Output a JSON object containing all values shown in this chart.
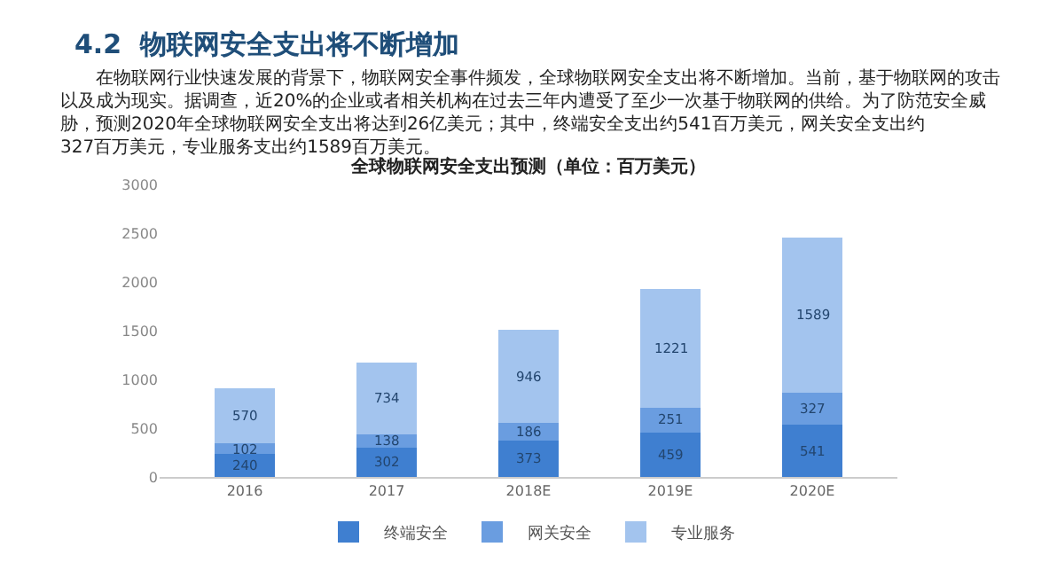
{
  "chart_data": {
    "type": "bar",
    "title": "全球物联网安全支出预测（单位：百万美元）",
    "annotations": [
      "4.2  物联网安全支出将不断增加",
      "在物联网行业快速发展的背景下，物联网安全事件频发，全球物联网安全支出将不断增加。当前，基于物联网的攻击以及成为现实。据调查，近20%的企业或者相关机构在过去三年内遭受了至少一次基于物联网的供给。为了防范安全威胁，预测2020年全球物联网安全支出将达到26亿美元；其中，终端安全支出约541百万美元，网关安全支出约327百万美元，专业服务支出约1589百万美元。"
    ],
    "categories": [
      "2016",
      "2017",
      "2018E",
      "2019E",
      "2020E"
    ],
    "stacked": true,
    "data_labels": true,
    "legend": "bottom",
    "ylim": [
      0,
      3000
    ],
    "yticks": [
      0,
      500,
      1000,
      1500,
      2000,
      2500,
      3000
    ],
    "series": [
      {
        "name": "终端安全",
        "color": "#3f7fd0",
        "values": [
          240,
          302,
          373,
          459,
          541
        ]
      },
      {
        "name": "网关安全",
        "color": "#6a9de0",
        "values": [
          102,
          138,
          186,
          251,
          327
        ]
      },
      {
        "name": "专业服务",
        "color": "#a3c4ee",
        "values": [
          570,
          734,
          946,
          1221,
          1589
        ]
      }
    ]
  }
}
